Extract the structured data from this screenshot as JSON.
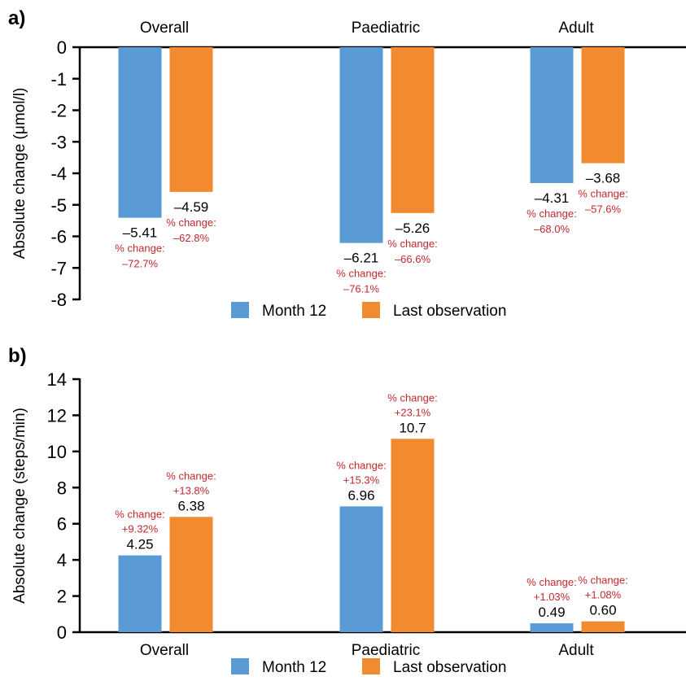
{
  "colors": {
    "month12": "#5b9bd5",
    "last_obs": "#f28a30",
    "pct_text": "#c0282e"
  },
  "chart_data": [
    {
      "panel": "a)",
      "type": "bar",
      "categories": [
        "Overall",
        "Paediatric",
        "Adult"
      ],
      "ylabel": "Absolute change (μmol/l)",
      "ylim": [
        -8,
        0
      ],
      "yticks": [
        "0",
        "-1",
        "-2",
        "-3",
        "-4",
        "-5",
        "-6",
        "-7",
        "-8"
      ],
      "series": [
        {
          "name": "Month 12",
          "values": [
            -5.41,
            -6.21,
            -4.31
          ],
          "value_labels": [
            "–5.41",
            "–6.21",
            "–4.31"
          ],
          "pct_labels": [
            [
              "% change:",
              "–72.7%"
            ],
            [
              "% change:",
              "–76.1%"
            ],
            [
              "% change:",
              "–68.0%"
            ]
          ]
        },
        {
          "name": "Last observation",
          "values": [
            -4.59,
            -5.26,
            -3.68
          ],
          "value_labels": [
            "–4.59",
            "–5.26",
            "–3.68"
          ],
          "pct_labels": [
            [
              "% change:",
              "–62.8%"
            ],
            [
              "% change:",
              "–66.6%"
            ],
            [
              "% change:",
              "–57.6%"
            ]
          ]
        }
      ],
      "legend": [
        "Month 12",
        "Last observation"
      ]
    },
    {
      "panel": "b)",
      "type": "bar",
      "categories": [
        "Overall",
        "Paediatric",
        "Adult"
      ],
      "ylabel": "Absolute change (steps/min)",
      "ylim": [
        0,
        14
      ],
      "yticks": [
        "0",
        "2",
        "4",
        "6",
        "8",
        "10",
        "12",
        "14"
      ],
      "series": [
        {
          "name": "Month 12",
          "values": [
            4.25,
            6.96,
            0.49
          ],
          "value_labels": [
            "4.25",
            "6.96",
            "0.49"
          ],
          "pct_labels": [
            [
              "% change:",
              "+9.32%"
            ],
            [
              "% change:",
              "+15.3%"
            ],
            [
              "% change:",
              "+1.03%"
            ]
          ]
        },
        {
          "name": "Last observation",
          "values": [
            6.38,
            10.7,
            0.6
          ],
          "value_labels": [
            "6.38",
            "10.7",
            "0.60"
          ],
          "pct_labels": [
            [
              "% change:",
              "+13.8%"
            ],
            [
              "% change:",
              "+23.1%"
            ],
            [
              "% change:",
              "+1.08%"
            ]
          ]
        }
      ],
      "legend": [
        "Month 12",
        "Last observation"
      ]
    }
  ]
}
